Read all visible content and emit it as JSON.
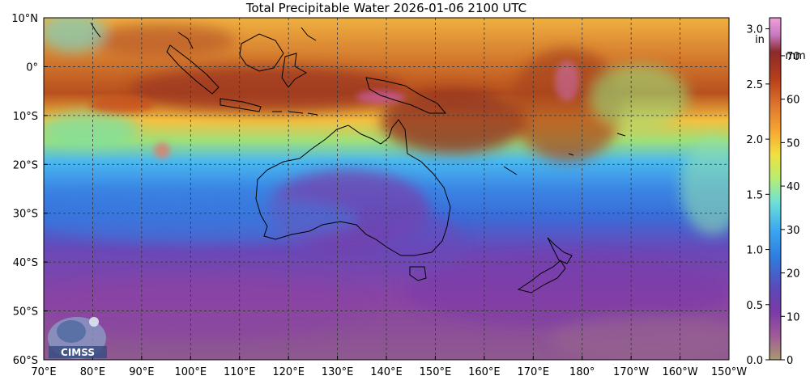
{
  "title": "Total Precipitable Water  2026-01-06 2100 UTC",
  "map": {
    "lon_range": [
      70,
      210
    ],
    "lat_range": [
      -60,
      10
    ],
    "lon_ticks": [
      {
        "value": 70,
        "label": "70°E"
      },
      {
        "value": 80,
        "label": "80°E"
      },
      {
        "value": 90,
        "label": "90°E"
      },
      {
        "value": 100,
        "label": "100°E"
      },
      {
        "value": 110,
        "label": "110°E"
      },
      {
        "value": 120,
        "label": "120°E"
      },
      {
        "value": 130,
        "label": "130°E"
      },
      {
        "value": 140,
        "label": "140°E"
      },
      {
        "value": 150,
        "label": "150°E"
      },
      {
        "value": 160,
        "label": "160°E"
      },
      {
        "value": 170,
        "label": "170°E"
      },
      {
        "value": 180,
        "label": "180°"
      },
      {
        "value": 190,
        "label": "170°W"
      },
      {
        "value": 200,
        "label": "160°W"
      },
      {
        "value": 210,
        "label": "150°W"
      }
    ],
    "lat_ticks": [
      {
        "value": 10,
        "label": "10°N"
      },
      {
        "value": 0,
        "label": "0°"
      },
      {
        "value": -10,
        "label": "10°S"
      },
      {
        "value": -20,
        "label": "20°S"
      },
      {
        "value": -30,
        "label": "30°S"
      },
      {
        "value": -40,
        "label": "40°S"
      },
      {
        "value": -50,
        "label": "50°S"
      },
      {
        "value": -60,
        "label": "60°S"
      }
    ],
    "grid": true,
    "logo_text": "CIMSS"
  },
  "colorbar": {
    "inch_unit": "in",
    "mm_unit": "mm",
    "inch_ticks": [
      "0.0",
      "0.5",
      "1.0",
      "1.5",
      "2.0",
      "2.5",
      "3.0"
    ],
    "inch_values": [
      0.0,
      0.5,
      1.0,
      1.5,
      2.0,
      2.5,
      3.0
    ],
    "inch_max": 3.1,
    "mm_ticks": [
      "0",
      "10",
      "20",
      "30",
      "40",
      "50",
      "60",
      "70"
    ],
    "mm_values": [
      0,
      10,
      20,
      30,
      40,
      50,
      60,
      70
    ],
    "colors": [
      "#a89a6e",
      "#a05a98",
      "#7a3aa8",
      "#5a4ab8",
      "#2f7ce0",
      "#3aa8f0",
      "#6ee0d8",
      "#b6ee70",
      "#f2e040",
      "#f6a632",
      "#e0782e",
      "#b8401a",
      "#8a2a2a",
      "#c878c0",
      "#f0a0d8"
    ]
  }
}
